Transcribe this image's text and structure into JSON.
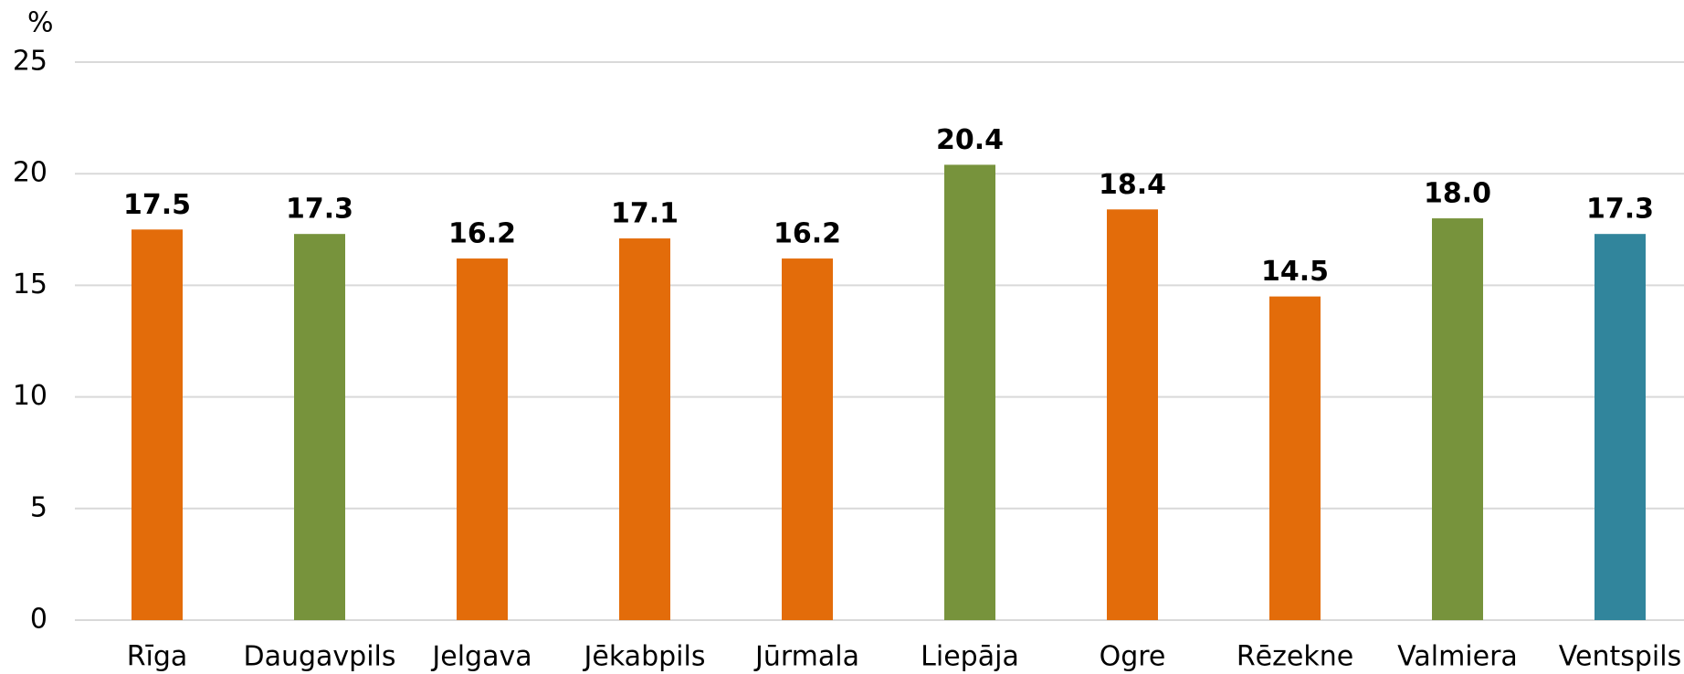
{
  "chart_data": {
    "type": "bar",
    "y_label": "%",
    "categories": [
      "Rīga",
      "Daugavpils",
      "Jelgava",
      "Jēkabpils",
      "Jūrmala",
      "Liepāja",
      "Ogre",
      "Rēzekne",
      "Valmiera",
      "Ventspils"
    ],
    "values": [
      17.5,
      17.3,
      16.2,
      17.1,
      16.2,
      20.4,
      18.4,
      14.5,
      18.0,
      17.3
    ],
    "value_labels": [
      "17.5",
      "17.3",
      "16.2",
      "17.1",
      "16.2",
      "20.4",
      "18.4",
      "14.5",
      "18.0",
      "17.3"
    ],
    "colors": [
      "#E36C0A",
      "#77933C",
      "#E36C0A",
      "#E36C0A",
      "#E36C0A",
      "#77933C",
      "#E36C0A",
      "#E36C0A",
      "#77933C",
      "#31859C"
    ],
    "ylim": [
      0,
      25
    ],
    "yticks": [
      0,
      5,
      10,
      15,
      20,
      25
    ],
    "grid": true
  }
}
